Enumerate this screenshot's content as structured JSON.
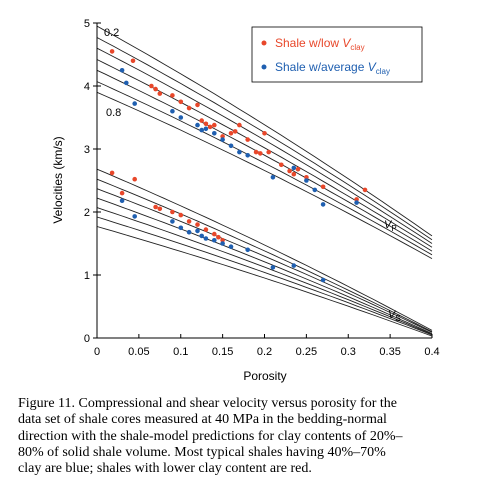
{
  "chart_data": {
    "type": "scatter",
    "ylabel": "Velocities (km/s)",
    "xlabel": "Porosity",
    "xlim": [
      0,
      0.4
    ],
    "ylim": [
      0,
      5
    ],
    "x_ticks": [
      "0",
      "0.05",
      "0.1",
      "0.15",
      "0.2",
      "0.25",
      "0.3",
      "0.35",
      "0.4"
    ],
    "y_ticks": [
      "0",
      "1",
      "2",
      "3",
      "4",
      "5"
    ],
    "legend": {
      "placement": "top-right",
      "items": [
        {
          "base": "Shale w/low ",
          "var": "V",
          "sub": "clay",
          "color": "#e8472a"
        },
        {
          "base": "Shale w/average ",
          "var": "V",
          "sub": "clay",
          "color": "#1f5fb0"
        }
      ]
    },
    "curve_labels": {
      "top": "0.2",
      "bottom": "0.8",
      "vp_var": "V",
      "vp_sub": "P",
      "vs_var": "V",
      "vs_sub": "S"
    },
    "model_curves": {
      "vp": {
        "clay_fractions": [
          0.2,
          0.3,
          0.4,
          0.5,
          0.6,
          0.7,
          0.8
        ],
        "v_at_zero": [
          4.95,
          4.77,
          4.6,
          4.42,
          4.25,
          4.07,
          3.9
        ],
        "v_at_end": [
          1.62,
          1.56,
          1.5,
          1.44,
          1.38,
          1.32,
          1.26
        ]
      },
      "vs": {
        "clay_fractions": [
          0.2,
          0.3,
          0.4,
          0.5,
          0.6,
          0.7,
          0.8
        ],
        "v_at_zero": [
          2.68,
          2.52,
          2.37,
          2.22,
          2.07,
          1.92,
          1.77
        ],
        "v_at_end": [
          0.12,
          0.1,
          0.09,
          0.07,
          0.06,
          0.05,
          0.03
        ]
      }
    },
    "series": [
      {
        "name": "Shale w/low Vclay",
        "color": "#e8472a",
        "vp": [
          [
            0.018,
            4.55
          ],
          [
            0.043,
            4.4
          ],
          [
            0.065,
            4.0
          ],
          [
            0.07,
            3.95
          ],
          [
            0.075,
            3.88
          ],
          [
            0.09,
            3.85
          ],
          [
            0.1,
            3.75
          ],
          [
            0.11,
            3.65
          ],
          [
            0.12,
            3.7
          ],
          [
            0.125,
            3.45
          ],
          [
            0.13,
            3.4
          ],
          [
            0.135,
            3.35
          ],
          [
            0.14,
            3.38
          ],
          [
            0.15,
            3.2
          ],
          [
            0.16,
            3.25
          ],
          [
            0.165,
            3.28
          ],
          [
            0.17,
            3.38
          ],
          [
            0.18,
            3.15
          ],
          [
            0.19,
            2.95
          ],
          [
            0.195,
            2.93
          ],
          [
            0.2,
            3.25
          ],
          [
            0.205,
            2.95
          ],
          [
            0.22,
            2.75
          ],
          [
            0.23,
            2.65
          ],
          [
            0.235,
            2.6
          ],
          [
            0.24,
            2.68
          ],
          [
            0.25,
            2.55
          ],
          [
            0.27,
            2.4
          ],
          [
            0.31,
            2.2
          ],
          [
            0.32,
            2.35
          ]
        ],
        "vs": [
          [
            0.018,
            2.62
          ],
          [
            0.03,
            2.3
          ],
          [
            0.045,
            2.52
          ],
          [
            0.07,
            2.08
          ],
          [
            0.075,
            2.05
          ],
          [
            0.09,
            2.0
          ],
          [
            0.1,
            1.95
          ],
          [
            0.11,
            1.85
          ],
          [
            0.12,
            1.8
          ],
          [
            0.13,
            1.72
          ],
          [
            0.14,
            1.65
          ],
          [
            0.145,
            1.6
          ],
          [
            0.15,
            1.55
          ]
        ]
      },
      {
        "name": "Shale w/average Vclay",
        "color": "#1f5fb0",
        "vp": [
          [
            0.03,
            4.25
          ],
          [
            0.035,
            4.05
          ],
          [
            0.045,
            3.72
          ],
          [
            0.09,
            3.6
          ],
          [
            0.1,
            3.5
          ],
          [
            0.12,
            3.38
          ],
          [
            0.125,
            3.3
          ],
          [
            0.13,
            3.32
          ],
          [
            0.14,
            3.25
          ],
          [
            0.15,
            3.15
          ],
          [
            0.16,
            3.05
          ],
          [
            0.17,
            2.95
          ],
          [
            0.18,
            2.9
          ],
          [
            0.21,
            2.55
          ],
          [
            0.235,
            2.7
          ],
          [
            0.25,
            2.5
          ],
          [
            0.26,
            2.35
          ],
          [
            0.27,
            2.12
          ],
          [
            0.31,
            2.15
          ]
        ],
        "vs": [
          [
            0.03,
            2.18
          ],
          [
            0.045,
            1.93
          ],
          [
            0.09,
            1.85
          ],
          [
            0.1,
            1.75
          ],
          [
            0.11,
            1.68
          ],
          [
            0.12,
            1.7
          ],
          [
            0.125,
            1.62
          ],
          [
            0.13,
            1.58
          ],
          [
            0.14,
            1.55
          ],
          [
            0.15,
            1.5
          ],
          [
            0.16,
            1.45
          ],
          [
            0.18,
            1.4
          ],
          [
            0.21,
            1.12
          ],
          [
            0.235,
            1.15
          ],
          [
            0.27,
            0.92
          ]
        ]
      }
    ]
  },
  "caption": {
    "lines": [
      "Figure 11. Compressional and shear velocity versus porosity for the",
      "data set of shale cores measured at 40 MPa in the bedding-normal",
      "direction with the shale-model predictions for clay contents of 20%–",
      "80% of solid shale volume. Most typical shales having 40%–70%",
      "clay are blue; shales with lower clay content are red."
    ]
  }
}
